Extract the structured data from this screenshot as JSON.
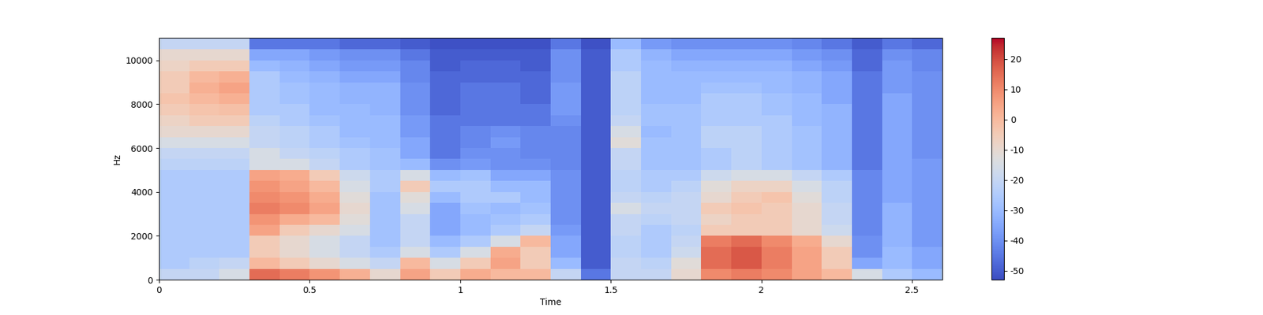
{
  "chart_data": {
    "type": "heatmap",
    "x_label": "Time",
    "y_label": "Hz",
    "color": "coolwarm",
    "xlim": [
      0,
      2.6
    ],
    "xticks": [
      0,
      0.5,
      1,
      1.5,
      2,
      2.5
    ],
    "ylim": [
      0,
      11025
    ],
    "yticks": [
      0,
      2000,
      4000,
      6000,
      8000,
      10000
    ],
    "color_range": [
      -53,
      27
    ],
    "color_ticks": [
      20,
      10,
      0,
      -10,
      -20,
      -30,
      -40,
      -50
    ],
    "x_edges": [
      0,
      0.1,
      0.2,
      0.3,
      0.4,
      0.5,
      0.6,
      0.7,
      0.8,
      0.9,
      1.0,
      1.1,
      1.2,
      1.3,
      1.4,
      1.5,
      1.6,
      1.7,
      1.8,
      1.9,
      2.0,
      2.1,
      2.2,
      2.3,
      2.4,
      2.5,
      2.6
    ],
    "y_edges": [
      0,
      500,
      1000,
      1500,
      2000,
      2500,
      3000,
      3500,
      4000,
      4500,
      5000,
      5500,
      6000,
      6500,
      7000,
      7500,
      8000,
      8500,
      9000,
      9500,
      10000,
      10500,
      11025
    ],
    "cells": [
      [
        -20,
        -25,
        -25,
        -25,
        -25,
        -25,
        -25,
        -25,
        -25,
        -25,
        -22,
        -20,
        -15,
        -10,
        -8,
        -5,
        -3,
        -5,
        -5,
        -8,
        -10,
        -20
      ],
      [
        -20,
        -22,
        -25,
        -25,
        -25,
        -25,
        -25,
        -25,
        -25,
        -25,
        -22,
        -20,
        -15,
        -10,
        -5,
        -3,
        0,
        2,
        0,
        -5,
        -10,
        -20
      ],
      [
        -15,
        -20,
        -25,
        -25,
        -25,
        -25,
        -25,
        -25,
        -25,
        -25,
        -22,
        -20,
        -15,
        -10,
        -5,
        -2,
        2,
        5,
        2,
        -5,
        -10,
        -20
      ],
      [
        15,
        0,
        -5,
        -5,
        5,
        8,
        12,
        10,
        8,
        5,
        -15,
        -15,
        -20,
        -20,
        -22,
        -25,
        -25,
        -25,
        -25,
        -30,
        -35,
        -45
      ],
      [
        12,
        -5,
        -10,
        -10,
        -5,
        3,
        10,
        8,
        5,
        3,
        -15,
        -20,
        -22,
        -22,
        -25,
        -25,
        -28,
        -28,
        -30,
        -32,
        -35,
        -45
      ],
      [
        8,
        -10,
        -15,
        -15,
        -10,
        0,
        5,
        3,
        0,
        -5,
        -20,
        -22,
        -25,
        -25,
        -28,
        -30,
        -30,
        -30,
        -32,
        -35,
        -38,
        -45
      ],
      [
        2,
        -15,
        -20,
        -20,
        -15,
        -12,
        -10,
        -12,
        -15,
        -18,
        -25,
        -25,
        -28,
        -30,
        -30,
        -30,
        -32,
        -32,
        -35,
        -38,
        -40,
        -48
      ],
      [
        -10,
        -20,
        -25,
        -28,
        -28,
        -28,
        -28,
        -28,
        -25,
        -25,
        -28,
        -28,
        -30,
        -30,
        -30,
        -32,
        -32,
        -32,
        -35,
        -38,
        -40,
        -48
      ],
      [
        5,
        0,
        -15,
        -20,
        -20,
        -20,
        -15,
        -12,
        -5,
        -15,
        -30,
        -35,
        -35,
        -38,
        -38,
        -40,
        -40,
        -40,
        -42,
        -42,
        -45,
        -50
      ],
      [
        -5,
        -15,
        -25,
        -30,
        -35,
        -35,
        -35,
        -30,
        -25,
        -30,
        -40,
        -45,
        -45,
        -45,
        -45,
        -48,
        -48,
        -48,
        -48,
        -50,
        -50,
        -52
      ],
      [
        3,
        -5,
        -15,
        -25,
        -30,
        -30,
        -28,
        -25,
        -25,
        -28,
        -38,
        -40,
        -42,
        -42,
        -45,
        -45,
        -45,
        -45,
        -48,
        -48,
        -50,
        -52
      ],
      [
        0,
        5,
        3,
        -15,
        -25,
        -28,
        -30,
        -25,
        -30,
        -35,
        -40,
        -40,
        -38,
        -40,
        -45,
        -45,
        -45,
        -45,
        -48,
        -48,
        -50,
        -52
      ],
      [
        0,
        -5,
        -5,
        0,
        -20,
        -25,
        -28,
        -30,
        -30,
        -35,
        -40,
        -42,
        -42,
        -42,
        -45,
        -45,
        -48,
        -48,
        -48,
        -50,
        -50,
        -52
      ],
      [
        -20,
        -30,
        -35,
        -35,
        -38,
        -40,
        -40,
        -40,
        -40,
        -40,
        -42,
        -42,
        -42,
        -42,
        -40,
        -38,
        -38,
        -38,
        -40,
        -40,
        -40,
        -45
      ],
      [
        -45,
        -50,
        -50,
        -50,
        -50,
        -50,
        -50,
        -50,
        -50,
        -50,
        -50,
        -50,
        -50,
        -50,
        -50,
        -50,
        -50,
        -50,
        -50,
        -50,
        -50,
        -52
      ],
      [
        -20,
        -20,
        -22,
        -22,
        -20,
        -20,
        -15,
        -20,
        -22,
        -22,
        -20,
        -20,
        -12,
        -15,
        -20,
        -22,
        -22,
        -22,
        -22,
        -25,
        -25,
        -30
      ],
      [
        -20,
        -22,
        -25,
        -25,
        -25,
        -22,
        -20,
        -22,
        -25,
        -25,
        -28,
        -28,
        -28,
        -30,
        -28,
        -28,
        -30,
        -30,
        -30,
        -30,
        -32,
        -38
      ],
      [
        -10,
        -12,
        -18,
        -20,
        -22,
        -20,
        -20,
        -20,
        -22,
        -25,
        -28,
        -28,
        -28,
        -28,
        -28,
        -28,
        -30,
        -30,
        -30,
        -32,
        -35,
        -40
      ],
      [
        10,
        15,
        15,
        12,
        -5,
        -8,
        -5,
        -10,
        -12,
        -18,
        -25,
        -25,
        -22,
        -22,
        -25,
        -25,
        -25,
        -28,
        -30,
        -32,
        -35,
        -40
      ],
      [
        12,
        18,
        18,
        15,
        -5,
        -5,
        -3,
        -5,
        -8,
        -15,
        -22,
        -22,
        -22,
        -22,
        -25,
        -25,
        -25,
        -28,
        -30,
        -32,
        -35,
        -40
      ],
      [
        10,
        12,
        12,
        10,
        -5,
        -5,
        -5,
        -3,
        -8,
        -15,
        -25,
        -25,
        -25,
        -25,
        -25,
        -28,
        -28,
        -30,
        -30,
        -32,
        -35,
        -40
      ],
      [
        5,
        5,
        5,
        3,
        -10,
        -10,
        -10,
        -12,
        -15,
        -20,
        -28,
        -28,
        -28,
        -28,
        -30,
        -30,
        -30,
        -32,
        -32,
        -35,
        -38,
        -42
      ],
      [
        0,
        -5,
        -5,
        -10,
        -18,
        -20,
        -20,
        -22,
        -22,
        -25,
        -32,
        -32,
        -32,
        -32,
        -32,
        -32,
        -35,
        -35,
        -35,
        -38,
        -40,
        -45
      ],
      [
        -15,
        -35,
        -40,
        -40,
        -42,
        -42,
        -42,
        -42,
        -42,
        -42,
        -45,
        -45,
        -45,
        -45,
        -45,
        -45,
        -45,
        -45,
        -45,
        -48,
        -48,
        -50
      ],
      [
        -25,
        -30,
        -30,
        -32,
        -32,
        -32,
        -32,
        -35,
        -35,
        -35,
        -35,
        -35,
        -35,
        -35,
        -35,
        -35,
        -35,
        -38,
        -38,
        -38,
        -40,
        -45
      ],
      [
        -30,
        -35,
        -35,
        -38,
        -38,
        -38,
        -38,
        -38,
        -38,
        -38,
        -38,
        -40,
        -40,
        -40,
        -40,
        -40,
        -40,
        -40,
        -40,
        -42,
        -42,
        -48
      ]
    ]
  }
}
